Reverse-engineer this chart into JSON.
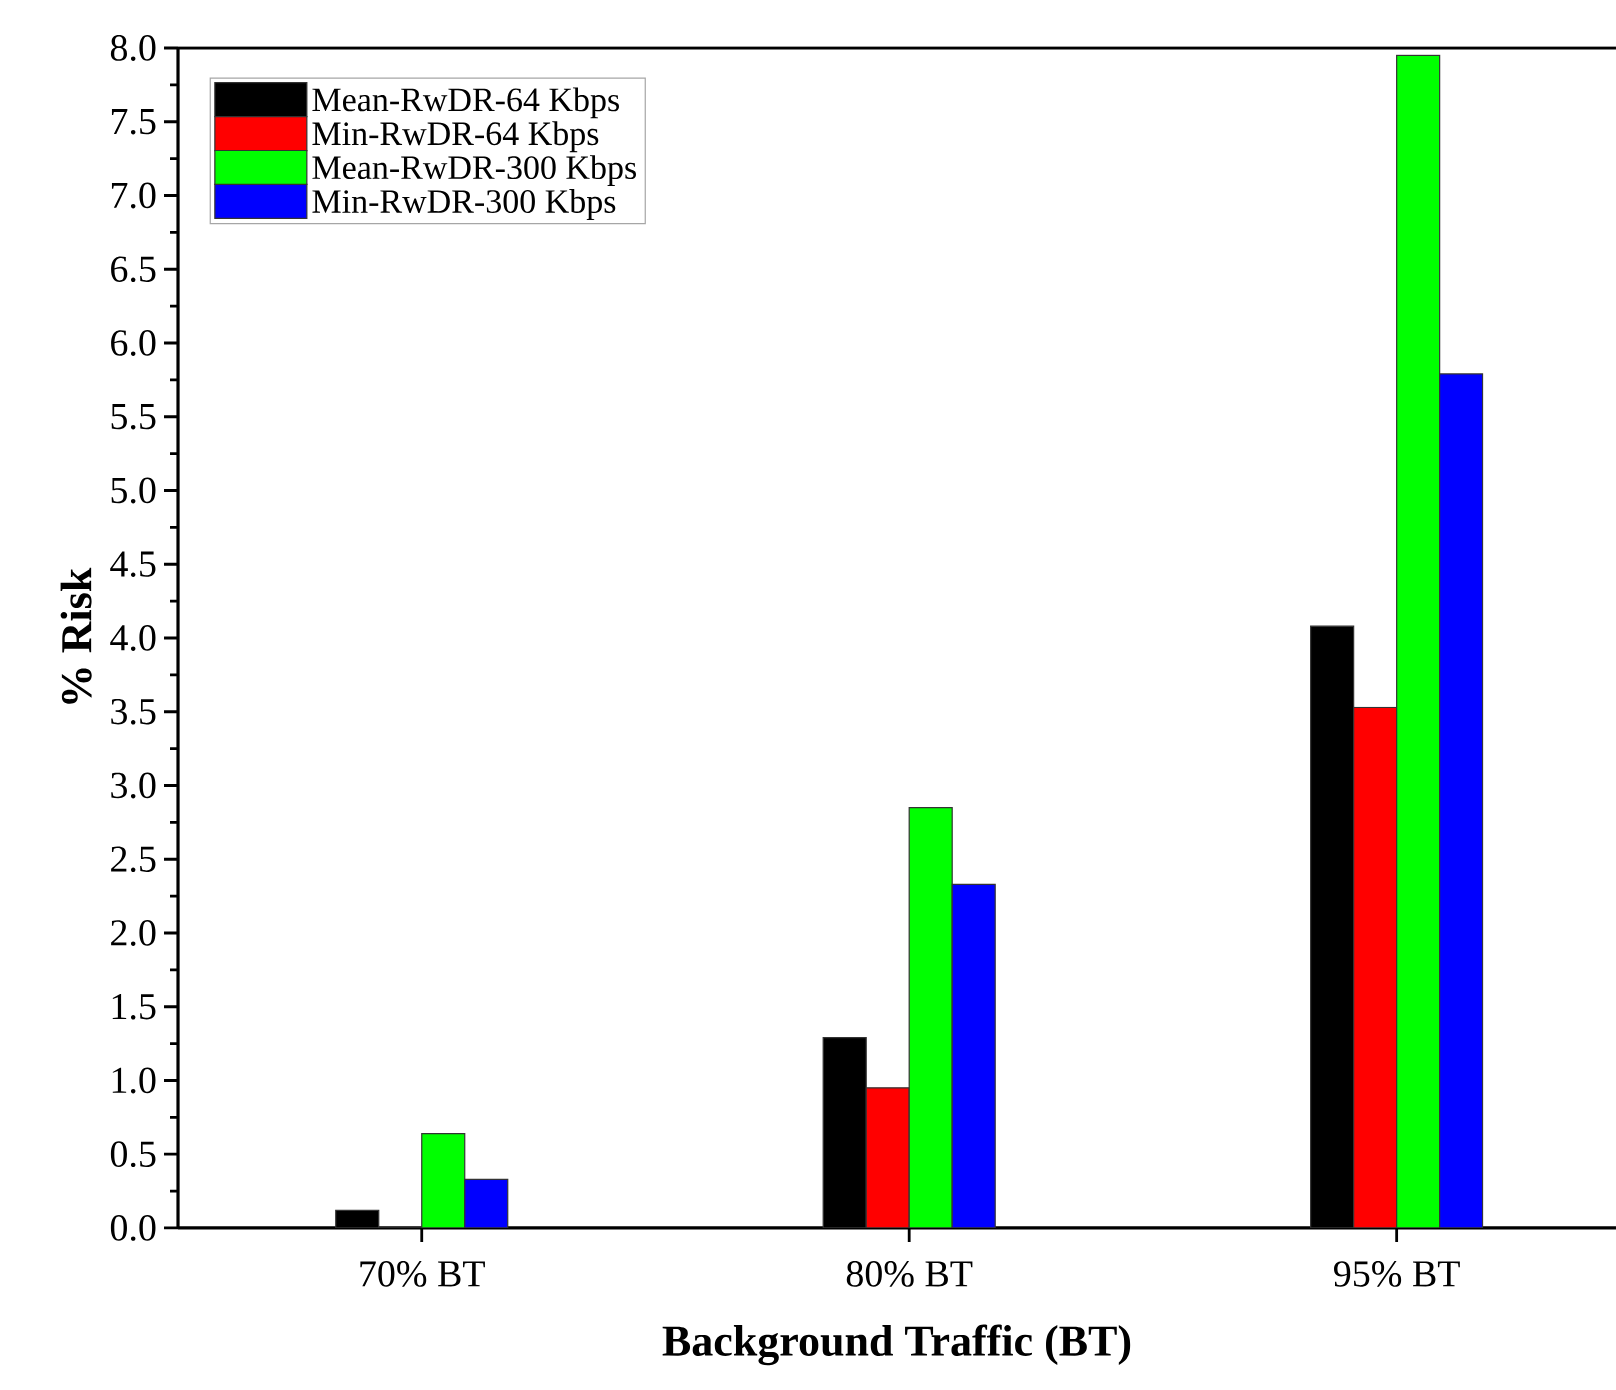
{
  "chart_data": {
    "type": "bar",
    "xlabel": "Background Traffic (BT)",
    "ylabel": "% Risk",
    "categories": [
      "70% BT",
      "80% BT",
      "95% BT"
    ],
    "series": [
      {
        "name": "Mean-RwDR-64 Kbps",
        "color": "#000000",
        "values": [
          0.12,
          1.29,
          4.08
        ]
      },
      {
        "name": "Min-RwDR-64 Kbps",
        "color": "#ff0000",
        "values": [
          0,
          0.95,
          3.53
        ]
      },
      {
        "name": "Mean-RwDR-300 Kbps",
        "color": "#00ff00",
        "values": [
          0.64,
          2.85,
          7.95
        ]
      },
      {
        "name": "Min-RwDR-300 Kbps",
        "color": "#0000ff",
        "values": [
          0.33,
          2.33,
          5.79
        ]
      }
    ],
    "ylim": [
      0,
      8
    ],
    "yticks": [
      {
        "value": 0,
        "label": "0.0"
      },
      0.5,
      {
        "value": 1,
        "label": "1.0"
      },
      1.5,
      {
        "value": 2,
        "label": "2.0"
      },
      2.5,
      {
        "value": 3,
        "label": "3.0"
      },
      3.5,
      {
        "value": 4,
        "label": "4.0"
      },
      4.5,
      {
        "value": 5,
        "label": "5.0"
      },
      5.5,
      {
        "value": 6,
        "label": "6.0"
      },
      6.5,
      {
        "value": 7,
        "label": "7.0"
      },
      7.5,
      {
        "value": 8,
        "label": "8.0"
      }
    ],
    "legend": "top left"
  }
}
